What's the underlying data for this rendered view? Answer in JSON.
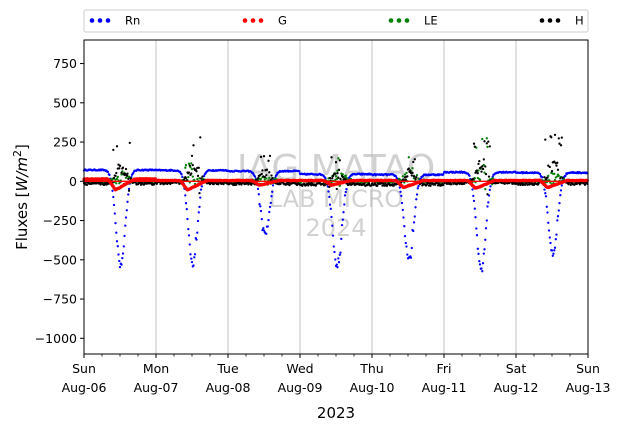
{
  "chart_data": {
    "type": "scatter",
    "title": "",
    "ylabel_main": "Fluxes ",
    "ylabel_unit": "W/m",
    "ylabel_sup": "2",
    "xlabel": "2023",
    "ylim": [
      -1100,
      900
    ],
    "yticks": [
      -1000,
      -750,
      -500,
      -250,
      0,
      250,
      500,
      750
    ],
    "xlim": [
      "2023-08-06T00:00",
      "2023-08-13T00:00"
    ],
    "xticks": [
      {
        "date": "2023-08-06",
        "day": "Sun",
        "label": "Aug-06"
      },
      {
        "date": "2023-08-07",
        "day": "Mon",
        "label": "Aug-07"
      },
      {
        "date": "2023-08-08",
        "day": "Tue",
        "label": "Aug-08"
      },
      {
        "date": "2023-08-09",
        "day": "Wed",
        "label": "Aug-09"
      },
      {
        "date": "2023-08-10",
        "day": "Thu",
        "label": "Aug-10"
      },
      {
        "date": "2023-08-11",
        "day": "Fri",
        "label": "Aug-11"
      },
      {
        "date": "2023-08-12",
        "day": "Sat",
        "label": "Aug-12"
      },
      {
        "date": "2023-08-13",
        "day": "Sun",
        "label": "Aug-13"
      }
    ],
    "grid": "vertical",
    "legend_position": "top",
    "watermark": [
      "IAG MATAO",
      "LAB MICRO",
      "2024"
    ],
    "series": [
      {
        "name": "Rn",
        "color": "#0000ff",
        "daily": [
          {
            "date": "2023-08-06",
            "night": 72,
            "min": -528,
            "peak_hour": 12.2
          },
          {
            "date": "2023-08-07",
            "night": 70,
            "min": -532,
            "peak_hour": 12.3
          },
          {
            "date": "2023-08-08",
            "night": 65,
            "min": -330,
            "peak_hour": 12.4
          },
          {
            "date": "2023-08-09",
            "night": 45,
            "min": -548,
            "peak_hour": 12.4
          },
          {
            "date": "2023-08-10",
            "night": 42,
            "min": -500,
            "peak_hour": 12.3
          },
          {
            "date": "2023-08-11",
            "night": 58,
            "min": -560,
            "peak_hour": 12.4
          },
          {
            "date": "2023-08-12",
            "night": 55,
            "min": -460,
            "peak_hour": 12.3
          }
        ]
      },
      {
        "name": "G",
        "color": "#ff0000",
        "daily": [
          {
            "date": "2023-08-06",
            "night": 15,
            "min": -55,
            "peak_hour": 10.5
          },
          {
            "date": "2023-08-07",
            "night": 5,
            "min": -55,
            "peak_hour": 10.5
          },
          {
            "date": "2023-08-08",
            "night": 5,
            "min": -25,
            "peak_hour": 10.5
          },
          {
            "date": "2023-08-09",
            "night": 5,
            "min": -25,
            "peak_hour": 10.5
          },
          {
            "date": "2023-08-10",
            "night": 5,
            "min": -40,
            "peak_hour": 10.5
          },
          {
            "date": "2023-08-11",
            "night": 5,
            "min": -45,
            "peak_hour": 10.5
          },
          {
            "date": "2023-08-12",
            "night": 5,
            "min": -40,
            "peak_hour": 10.5
          }
        ]
      },
      {
        "name": "LE",
        "color": "#008000",
        "daily": [
          {
            "date": "2023-08-06",
            "night": 0,
            "max": 140,
            "peak_hour": 13
          },
          {
            "date": "2023-08-07",
            "night": 0,
            "max": 120,
            "peak_hour": 13
          },
          {
            "date": "2023-08-08",
            "night": 0,
            "max": 110,
            "peak_hour": 13
          },
          {
            "date": "2023-08-09",
            "night": 0,
            "max": 180,
            "peak_hour": 13
          },
          {
            "date": "2023-08-10",
            "night": 0,
            "max": 220,
            "peak_hour": 13
          },
          {
            "date": "2023-08-11",
            "night": 0,
            "max": 280,
            "peak_hour": 13
          },
          {
            "date": "2023-08-12",
            "night": 0,
            "max": 160,
            "peak_hour": 13
          }
        ]
      },
      {
        "name": "H",
        "color": "#000000",
        "daily": [
          {
            "date": "2023-08-06",
            "night": -15,
            "max": 260,
            "peak_hour": 12.5
          },
          {
            "date": "2023-08-07",
            "night": -10,
            "max": 280,
            "peak_hour": 12.5
          },
          {
            "date": "2023-08-08",
            "night": -15,
            "max": 170,
            "peak_hour": 12.5
          },
          {
            "date": "2023-08-09",
            "night": -20,
            "max": 160,
            "peak_hour": 12.5
          },
          {
            "date": "2023-08-10",
            "night": -20,
            "max": 150,
            "peak_hour": 12.5
          },
          {
            "date": "2023-08-11",
            "night": -10,
            "max": 270,
            "peak_hour": 12.5
          },
          {
            "date": "2023-08-12",
            "night": -15,
            "max": 310,
            "peak_hour": 12.5
          }
        ]
      }
    ]
  }
}
